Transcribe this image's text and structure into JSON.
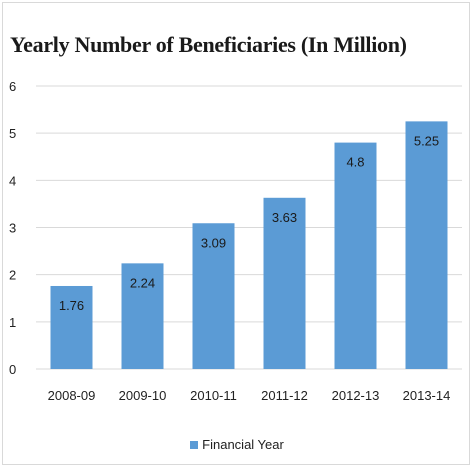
{
  "chart_data": {
    "type": "bar",
    "title": "Yearly Number of Beneficiaries (In Million)",
    "categories": [
      "2008-09",
      "2009-10",
      "2010-11",
      "2011-12",
      "2012-13",
      "2013-14"
    ],
    "series": [
      {
        "name": "Financial Year",
        "values": [
          1.76,
          2.24,
          3.09,
          3.63,
          4.8,
          5.25
        ]
      }
    ],
    "data_labels": [
      "1.76",
      "2.24",
      "3.09",
      "3.63",
      "4.8",
      "5.25"
    ],
    "y_ticks": [
      "0",
      "1",
      "2",
      "3",
      "4",
      "5",
      "6"
    ],
    "ylim": [
      0,
      6
    ],
    "xlabel": "",
    "ylabel": "",
    "grid": true,
    "legend_position": "bottom",
    "bar_color": "#5b9bd5",
    "grid_color": "#d9d9d9"
  }
}
